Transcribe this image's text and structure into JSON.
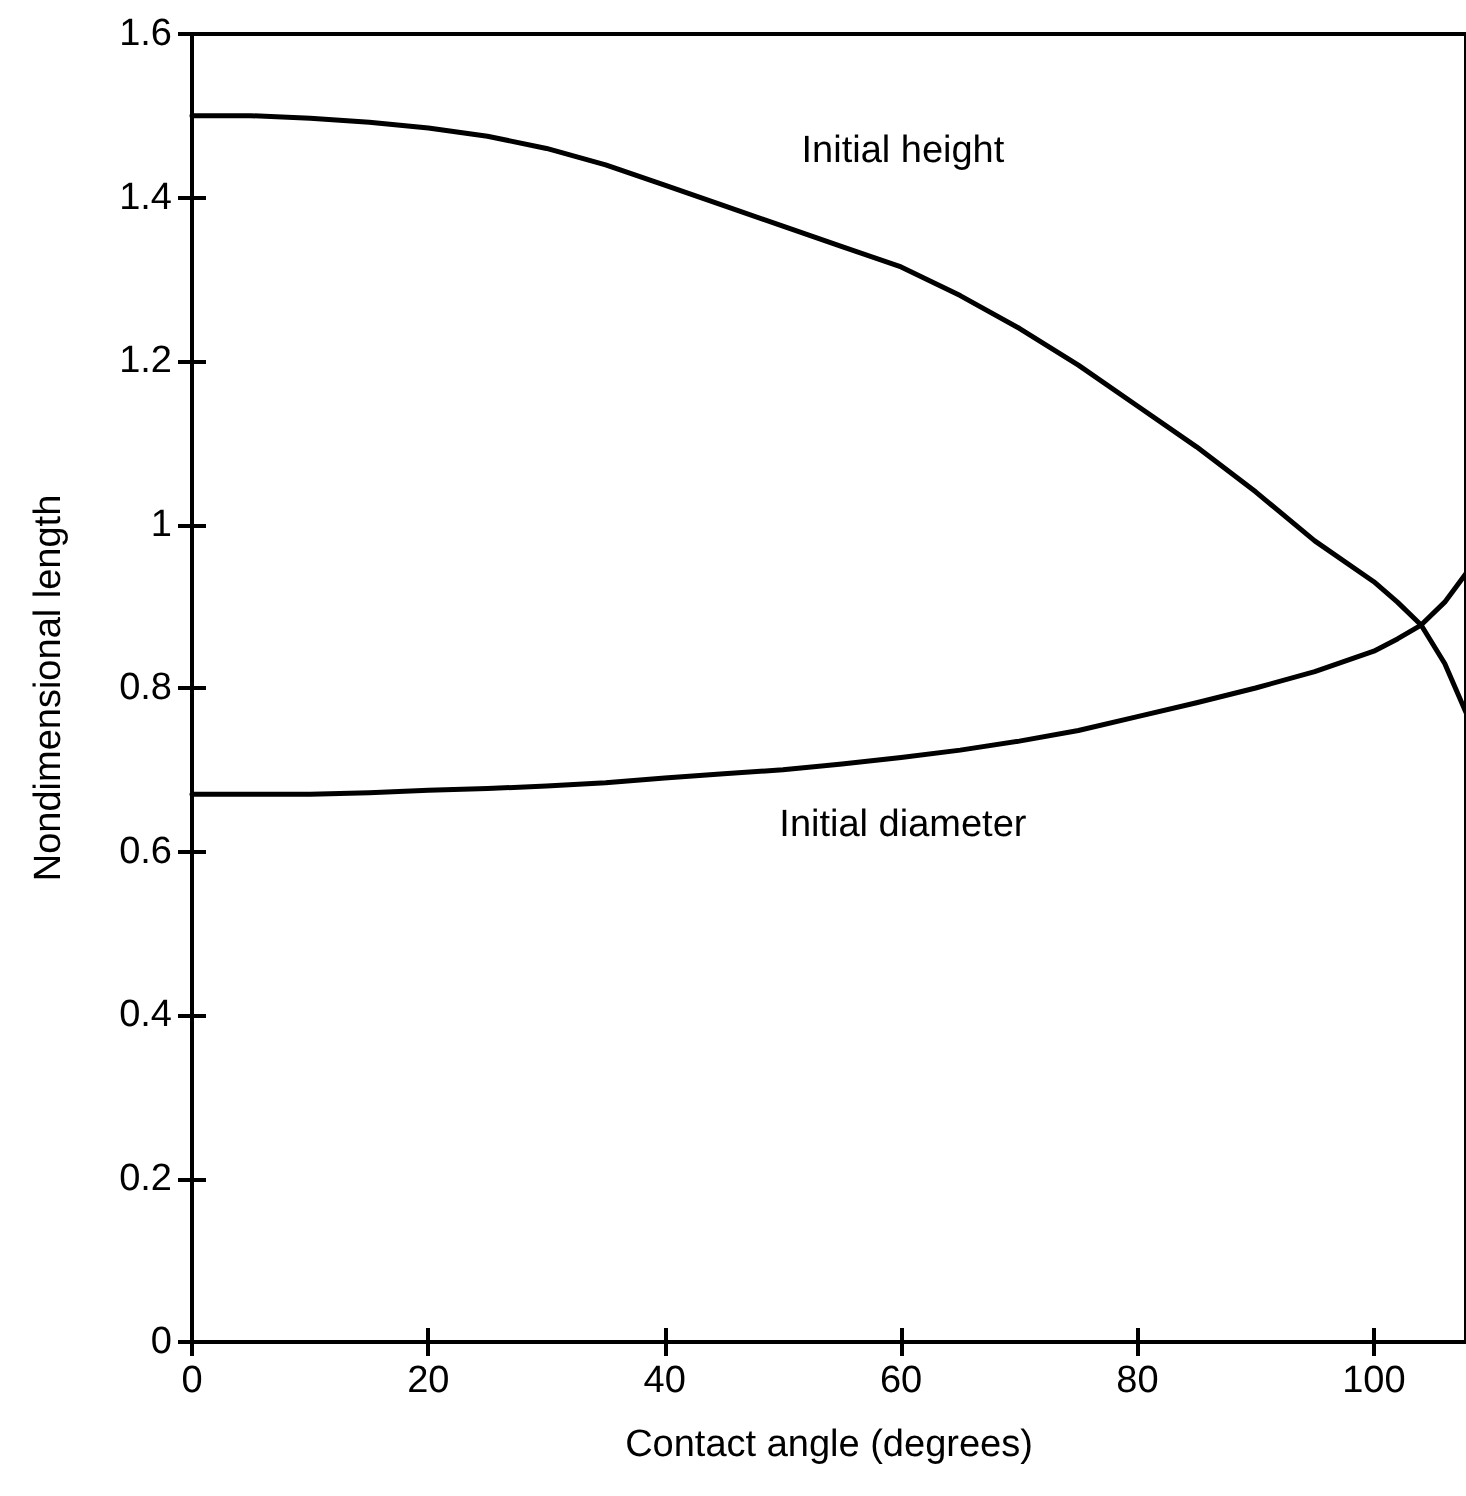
{
  "chart_data": {
    "type": "line",
    "xlabel": "Contact angle (degrees)",
    "ylabel": "Nondimensional length",
    "xlim": [
      0,
      107.8
    ],
    "xticks": [
      0,
      20,
      40,
      60,
      80,
      100
    ],
    "ylim": [
      0,
      1.6
    ],
    "yticks": [
      0,
      0.2,
      0.4,
      0.6,
      0.8,
      1,
      1.2,
      1.4,
      1.6
    ],
    "x": [
      0,
      5,
      10,
      15,
      20,
      25,
      30,
      35,
      40,
      45,
      50,
      55,
      60,
      65,
      70,
      75,
      80,
      85,
      90,
      95,
      100,
      102,
      104,
      106,
      107.8
    ],
    "series": [
      {
        "name": "Initial height",
        "color": "#000000",
        "values": [
          1.5,
          1.5,
          1.497,
          1.492,
          1.485,
          1.475,
          1.46,
          1.44,
          1.415,
          1.39,
          1.365,
          1.34,
          1.315,
          1.28,
          1.24,
          1.195,
          1.145,
          1.095,
          1.04,
          0.98,
          0.93,
          0.905,
          0.877,
          0.83,
          0.77
        ]
      },
      {
        "name": "Initial diameter",
        "color": "#000000",
        "values": [
          0.67,
          0.67,
          0.67,
          0.672,
          0.675,
          0.677,
          0.68,
          0.684,
          0.69,
          0.695,
          0.7,
          0.707,
          0.715,
          0.724,
          0.735,
          0.748,
          0.765,
          0.782,
          0.8,
          0.82,
          0.845,
          0.86,
          0.877,
          0.905,
          0.94
        ]
      }
    ],
    "grid": false,
    "legend": false,
    "marker": "none",
    "line_style": "solid"
  }
}
